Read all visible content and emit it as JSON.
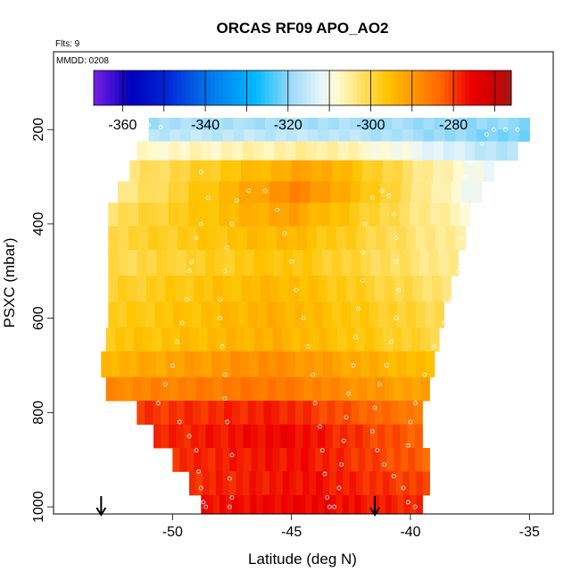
{
  "chart_data": {
    "type": "heatmap",
    "title": "ORCAS RF09 APO_AO2",
    "flights_label": "Flts: 9",
    "date_label": "MMDD: 0208",
    "xlabel": "Latitude (deg N)",
    "ylabel": "PSXC (mbar)",
    "xlim": [
      -55,
      -34
    ],
    "ylim": [
      1015,
      35
    ],
    "x_ticks": [
      -50,
      -45,
      -40,
      -35
    ],
    "y_ticks": [
      200,
      400,
      600,
      800,
      1000
    ],
    "colorbar": {
      "range": [
        -367,
        -266
      ],
      "ticks": [
        -360,
        -340,
        -320,
        -300,
        -280
      ],
      "stops": [
        {
          "v": -367,
          "color": "#7b1fe8"
        },
        {
          "v": -358,
          "color": "#0000bb"
        },
        {
          "v": -349,
          "color": "#0028d8"
        },
        {
          "v": -340,
          "color": "#0070e8"
        },
        {
          "v": -328,
          "color": "#00b8ff"
        },
        {
          "v": -319,
          "color": "#9edcf8"
        },
        {
          "v": -312,
          "color": "#e8f6fc"
        },
        {
          "v": -308,
          "color": "#fffad0"
        },
        {
          "v": -302,
          "color": "#ffe066"
        },
        {
          "v": -296,
          "color": "#ffc400"
        },
        {
          "v": -290,
          "color": "#ff9900"
        },
        {
          "v": -283,
          "color": "#ff6600"
        },
        {
          "v": -276,
          "color": "#ee0000"
        },
        {
          "v": -270,
          "color": "#cc0000"
        },
        {
          "v": -266,
          "color": "#a01818"
        }
      ]
    },
    "layers": [
      {
        "p_top": 175,
        "p_bot": 200,
        "lat_min": -51.0,
        "lat_max": -35.0,
        "west": -318,
        "mid": -318,
        "east": -320
      },
      {
        "p_top": 200,
        "p_bot": 225,
        "lat_min": -51.0,
        "lat_max": -35.0,
        "west": -316,
        "mid": -316,
        "east": -322
      },
      {
        "p_top": 225,
        "p_bot": 265,
        "lat_min": -51.5,
        "lat_max": -35.5,
        "west": -308,
        "mid": -305,
        "east": -318
      },
      {
        "p_top": 265,
        "p_bot": 310,
        "lat_min": -51.8,
        "lat_max": -36.5,
        "west": -303,
        "mid": -291,
        "east": -312
      },
      {
        "p_top": 310,
        "p_bot": 355,
        "lat_min": -52.3,
        "lat_max": -37.0,
        "west": -305,
        "mid": -287,
        "east": -312
      },
      {
        "p_top": 355,
        "p_bot": 405,
        "lat_min": -52.7,
        "lat_max": -37.5,
        "west": -302,
        "mid": -291,
        "east": -308
      },
      {
        "p_top": 405,
        "p_bot": 455,
        "lat_min": -52.7,
        "lat_max": -37.7,
        "west": -300,
        "mid": -294,
        "east": -306
      },
      {
        "p_top": 455,
        "p_bot": 510,
        "lat_min": -52.7,
        "lat_max": -38.0,
        "west": -301,
        "mid": -296,
        "east": -305
      },
      {
        "p_top": 510,
        "p_bot": 565,
        "lat_min": -52.7,
        "lat_max": -38.3,
        "west": -299,
        "mid": -294,
        "east": -303
      },
      {
        "p_top": 565,
        "p_bot": 620,
        "lat_min": -52.7,
        "lat_max": -38.6,
        "west": -298,
        "mid": -293,
        "east": -301
      },
      {
        "p_top": 620,
        "p_bot": 670,
        "lat_min": -52.8,
        "lat_max": -38.8,
        "west": -297,
        "mid": -293,
        "east": -300
      },
      {
        "p_top": 670,
        "p_bot": 725,
        "lat_min": -53.0,
        "lat_max": -39.0,
        "west": -294,
        "mid": -288,
        "east": -296
      },
      {
        "p_top": 725,
        "p_bot": 775,
        "lat_min": -52.8,
        "lat_max": -39.2,
        "west": -288,
        "mid": -285,
        "east": -292
      },
      {
        "p_top": 775,
        "p_bot": 825,
        "lat_min": -51.5,
        "lat_max": -39.5,
        "west": -280,
        "mid": -278,
        "east": -286
      },
      {
        "p_top": 825,
        "p_bot": 875,
        "lat_min": -50.8,
        "lat_max": -39.5,
        "west": -279,
        "mid": -276,
        "east": -283
      },
      {
        "p_top": 875,
        "p_bot": 925,
        "lat_min": -50.0,
        "lat_max": -39.2,
        "west": -279,
        "mid": -277,
        "east": -283
      },
      {
        "p_top": 925,
        "p_bot": 975,
        "lat_min": -49.3,
        "lat_max": -39.2,
        "west": -279,
        "mid": -277,
        "east": -281
      },
      {
        "p_top": 975,
        "p_bot": 1015,
        "lat_min": -48.8,
        "lat_max": -39.5,
        "west": -277,
        "mid": -276,
        "east": -279
      }
    ],
    "flight_track": [
      [
        -51.0,
        190
      ],
      [
        -50.5,
        195
      ],
      [
        -49.5,
        235
      ],
      [
        -48.8,
        290
      ],
      [
        -48.5,
        345
      ],
      [
        -48.8,
        400
      ],
      [
        -49.0,
        430
      ],
      [
        -49.2,
        480
      ],
      [
        -49.3,
        500
      ],
      [
        -49.4,
        560
      ],
      [
        -49.6,
        610
      ],
      [
        -49.8,
        650
      ],
      [
        -50.0,
        700
      ],
      [
        -50.3,
        740
      ],
      [
        -50.6,
        780
      ],
      [
        -49.7,
        820
      ],
      [
        -49.3,
        850
      ],
      [
        -49.0,
        880
      ],
      [
        -48.9,
        925
      ],
      [
        -48.8,
        960
      ],
      [
        -48.7,
        990
      ],
      [
        -48.6,
        1000
      ],
      [
        -47.6,
        1000
      ],
      [
        -47.5,
        980
      ],
      [
        -47.6,
        940
      ],
      [
        -47.5,
        890
      ],
      [
        -47.7,
        820
      ],
      [
        -47.8,
        770
      ],
      [
        -47.8,
        720
      ],
      [
        -47.9,
        660
      ],
      [
        -48.0,
        600
      ],
      [
        -48.0,
        560
      ],
      [
        -47.8,
        500
      ],
      [
        -47.7,
        450
      ],
      [
        -47.5,
        400
      ],
      [
        -47.3,
        350
      ],
      [
        -46.8,
        330
      ],
      [
        -46.1,
        330
      ],
      [
        -45.6,
        370
      ],
      [
        -45.3,
        420
      ],
      [
        -45.0,
        480
      ],
      [
        -44.8,
        540
      ],
      [
        -44.5,
        600
      ],
      [
        -44.3,
        660
      ],
      [
        -44.1,
        720
      ],
      [
        -44.0,
        780
      ],
      [
        -43.8,
        830
      ],
      [
        -43.7,
        880
      ],
      [
        -43.6,
        930
      ],
      [
        -43.5,
        980
      ],
      [
        -43.4,
        1000
      ],
      [
        -43.2,
        1000
      ],
      [
        -43.0,
        960
      ],
      [
        -42.9,
        910
      ],
      [
        -42.8,
        860
      ],
      [
        -42.7,
        810
      ],
      [
        -42.6,
        760
      ],
      [
        -42.4,
        700
      ],
      [
        -42.3,
        640
      ],
      [
        -42.2,
        580
      ],
      [
        -42.0,
        520
      ],
      [
        -42.0,
        460
      ],
      [
        -41.9,
        400
      ],
      [
        -41.6,
        345
      ],
      [
        -41.2,
        330
      ],
      [
        -40.9,
        340
      ],
      [
        -40.7,
        380
      ],
      [
        -40.6,
        430
      ],
      [
        -40.6,
        480
      ],
      [
        -40.5,
        540
      ],
      [
        -40.6,
        600
      ],
      [
        -40.8,
        650
      ],
      [
        -41.0,
        700
      ],
      [
        -41.3,
        740
      ],
      [
        -41.5,
        790
      ],
      [
        -41.6,
        840
      ],
      [
        -41.4,
        880
      ],
      [
        -41.1,
        910
      ],
      [
        -40.7,
        935
      ],
      [
        -40.3,
        960
      ],
      [
        -40.1,
        990
      ],
      [
        -39.8,
        1000
      ],
      [
        -40.1,
        870
      ],
      [
        -40.0,
        820
      ],
      [
        -39.8,
        780
      ],
      [
        -39.4,
        720
      ],
      [
        -39.0,
        660
      ],
      [
        -38.6,
        610
      ],
      [
        -38.3,
        560
      ],
      [
        -38.0,
        500
      ],
      [
        -37.9,
        430
      ],
      [
        -37.8,
        360
      ],
      [
        -37.7,
        300
      ],
      [
        -37.5,
        270
      ],
      [
        -37.0,
        230
      ],
      [
        -36.8,
        210
      ],
      [
        -36.5,
        200
      ],
      [
        -36.0,
        200
      ],
      [
        -35.5,
        200
      ]
    ],
    "arrows": [
      -53.0,
      -41.5
    ]
  }
}
